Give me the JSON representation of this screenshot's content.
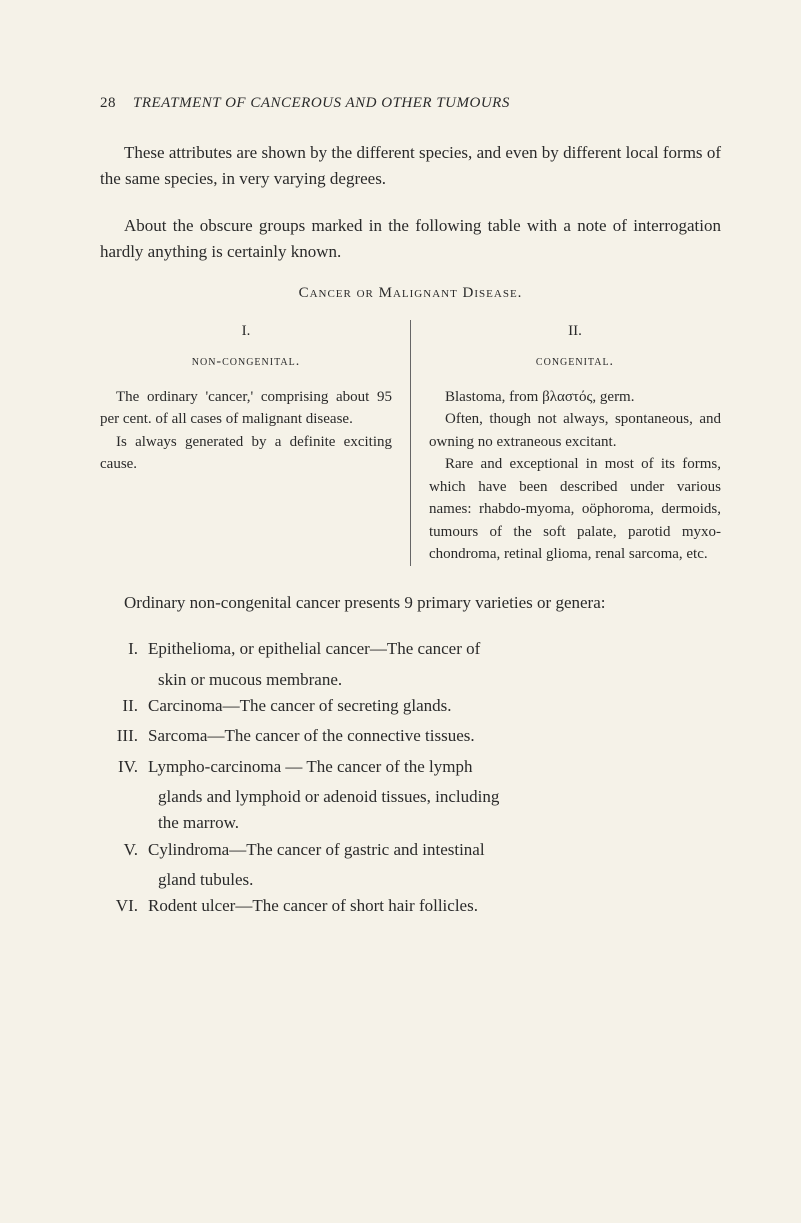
{
  "page": {
    "number": "28",
    "runningTitle": "TREATMENT OF CANCEROUS AND OTHER TUMOURS"
  },
  "para1": "These attributes are shown by the different species, and even by different local forms of the same species, in very varying degrees.",
  "para2": "About the obscure groups marked in the following table with a note of interrogation hardly anything is certainly known.",
  "tableHeading": "Cancer or Malignant Disease.",
  "columns": {
    "left": {
      "num": "I.",
      "label": "non-congenital.",
      "text1": "The ordinary 'cancer,' comprising about 95 per cent. of all cases of malignant disease.",
      "text2": "Is always generated by a definite exciting cause."
    },
    "right": {
      "num": "II.",
      "label": "congenital.",
      "text1a": "Blastoma, from ",
      "text1greek": "βλαστός",
      "text1b": ", germ.",
      "text2": "Often, though not always, spontaneous, and owning no extraneous excitant.",
      "text3": "Rare and exceptional in most of its forms, which have been described under various names: rhabdo-myoma, oöphoroma, dermoids, tumours of the soft palate, parotid myxo-chondroma, retinal glioma, renal sarcoma, etc."
    }
  },
  "ordinaryPara": "Ordinary non-congenital cancer presents 9 primary varieties or genera:",
  "classification": [
    {
      "roman": "I.",
      "line1": "Epithelioma, or epithelial cancer—The cancer of",
      "line2": "skin or mucous membrane."
    },
    {
      "roman": "II.",
      "line1": "Carcinoma—The cancer of secreting glands."
    },
    {
      "roman": "III.",
      "line1": "Sarcoma—The cancer of the connective tissues."
    },
    {
      "roman": "IV.",
      "line1": "Lympho-carcinoma — The cancer of the lymph",
      "line2": "glands and lymphoid or adenoid tissues, including",
      "line3": "the marrow."
    },
    {
      "roman": "V.",
      "line1": "Cylindroma—The cancer of gastric and intestinal",
      "line2": "gland tubules."
    },
    {
      "roman": "VI.",
      "line1": "Rodent ulcer—The cancer of short hair follicles."
    }
  ],
  "colors": {
    "background": "#f5f2e8",
    "text": "#2a2a2a",
    "rule": "#666666"
  }
}
